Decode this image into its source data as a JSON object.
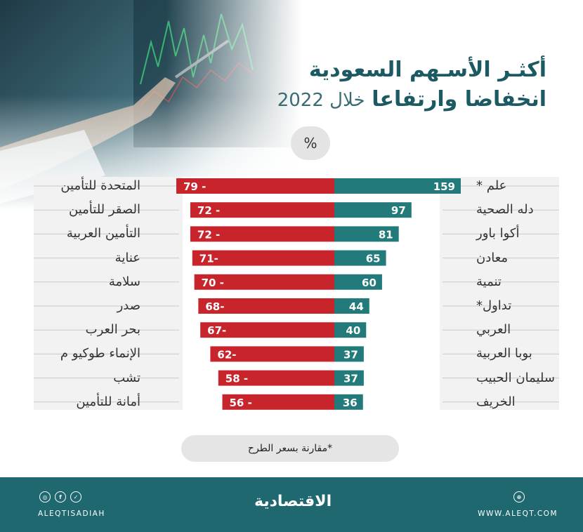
{
  "header": {
    "title_line1": "أكثـر الأسـهم السعودية",
    "title_line2_bold": "انخفاضا وارتفاعا",
    "title_line2_rest": "خلال 2022"
  },
  "unit_badge": "%",
  "chart_data": {
    "type": "bar",
    "orientation": "horizontal-diverging",
    "colors": {
      "decline": "#c8242c",
      "rise": "#237a7a"
    },
    "decliners": {
      "labels": [
        "المتحدة للتأمين",
        "الصقر للتأمين",
        "التأمين العربية",
        "عناية",
        "سلامة",
        "صدر",
        "بحر العرب",
        "الإنماء طوكيو م",
        "تشب",
        "أمانة للتأمين"
      ],
      "values": [
        -79,
        -72,
        -72,
        -71,
        -70,
        -68,
        -67,
        -62,
        -58,
        -56
      ],
      "value_labels": [
        "79 -",
        "72 -",
        "72 -",
        "71-",
        "70 -",
        "68-",
        "67-",
        "62-",
        "58 -",
        "56 -"
      ]
    },
    "gainers": {
      "labels": [
        "علم *",
        "دله الصحية",
        "أكوا باور",
        "معادن",
        "تنمية",
        "تداول*",
        "العربي",
        "بوبا العربية",
        "سليمان الحبيب",
        "الخريف"
      ],
      "values": [
        159,
        97,
        81,
        65,
        60,
        44,
        40,
        37,
        37,
        36
      ],
      "value_labels": [
        "159",
        "97",
        "81",
        "65",
        "60",
        "44",
        "40",
        "37",
        "37",
        "36"
      ]
    }
  },
  "footnote": "*مقارنة بسعر الطرح",
  "footer": {
    "logo_text": "الاقتصادية",
    "social_handle": "ALEQTISADIAH",
    "website": "WWW.ALEQT.COM",
    "social_icons": [
      "instagram-icon",
      "facebook-icon",
      "twitter-icon"
    ],
    "bg_color": "#1f6870"
  }
}
